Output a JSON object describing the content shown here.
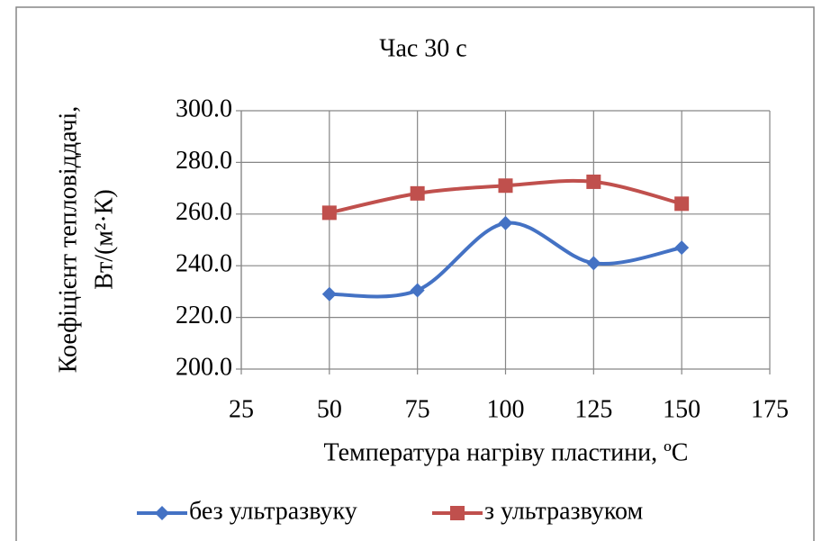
{
  "chart_data": {
    "type": "line",
    "title": "Час 30 с",
    "xlabel": "Температура нагріву пластини, ºC",
    "ylabel": [
      "Коефіцієнт тепловіддачі,",
      "Вт/(м²·К)"
    ],
    "x": [
      50,
      75,
      100,
      125,
      150
    ],
    "series": [
      {
        "name": "без ультразвуку",
        "color": "#4472c4",
        "marker": "diamond",
        "values": [
          229,
          230.5,
          256.5,
          241,
          247
        ]
      },
      {
        "name": "з ультразвуком",
        "color": "#c0504d",
        "marker": "square",
        "values": [
          260.5,
          268,
          271,
          272.5,
          264
        ]
      }
    ],
    "xlim": [
      25,
      175
    ],
    "xticks": [
      25,
      50,
      75,
      100,
      125,
      150,
      175
    ],
    "ylim": [
      200,
      300
    ],
    "yticks": [
      {
        "value": 200,
        "label": "200.0"
      },
      {
        "value": 220,
        "label": "220.0"
      },
      {
        "value": 240,
        "label": "240.0"
      },
      {
        "value": 260,
        "label": "260.0"
      },
      {
        "value": 280,
        "label": "280.0"
      },
      {
        "value": 300,
        "label": "300.0"
      }
    ],
    "grid": true,
    "smooth": true,
    "legend": "bottom"
  }
}
